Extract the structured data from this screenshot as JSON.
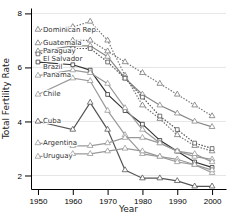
{
  "chart_data": {
    "type": "line",
    "xlabel": "Year",
    "ylabel": "Total Fertility Rate",
    "x": [
      1950,
      1960,
      1965,
      1970,
      1975,
      1980,
      1985,
      1990,
      1995,
      2000
    ],
    "series": [
      {
        "name": "Dominican Rep.",
        "color": "#777777",
        "marker": "triangle",
        "line_style": "dotted",
        "values": [
          7.4,
          7.5,
          7.7,
          7.0,
          5.7,
          4.6,
          4.1,
          3.5,
          3.1,
          2.9
        ]
      },
      {
        "name": "Guatemala",
        "color": "#777777",
        "marker": "triangle",
        "line_style": "dotted",
        "values": [
          6.9,
          7.0,
          7.0,
          6.6,
          6.2,
          5.8,
          5.4,
          5.0,
          4.6,
          4.2
        ]
      },
      {
        "name": "Paraguay",
        "color": "#888888",
        "marker": "triangle",
        "line_style": "solid",
        "values": [
          6.6,
          6.8,
          6.8,
          6.4,
          5.6,
          5.0,
          4.6,
          4.3,
          4.0,
          3.8
        ]
      },
      {
        "name": "El Salvador",
        "color": "#555555",
        "marker": "square",
        "line_style": "dotted",
        "values": [
          6.5,
          6.7,
          6.7,
          6.2,
          5.6,
          4.9,
          4.2,
          3.7,
          3.2,
          3.0
        ]
      },
      {
        "name": "Brazil",
        "color": "#333333",
        "marker": "square",
        "line_style": "solid",
        "values": [
          6.2,
          6.1,
          5.9,
          5.0,
          4.4,
          3.9,
          3.3,
          2.9,
          2.5,
          2.3
        ]
      },
      {
        "name": "Panama",
        "color": "#999999",
        "marker": "triangle",
        "line_style": "solid",
        "values": [
          5.7,
          5.9,
          5.8,
          5.4,
          4.5,
          3.7,
          3.2,
          2.9,
          2.7,
          2.6
        ]
      },
      {
        "name": "Chile",
        "color": "#999999",
        "marker": "triangle",
        "line_style": "solid",
        "values": [
          5.0,
          5.6,
          5.5,
          4.4,
          3.5,
          2.8,
          2.7,
          2.6,
          2.4,
          2.1
        ]
      },
      {
        "name": "Cuba",
        "color": "#555555",
        "marker": "triangle",
        "line_style": "solid",
        "values": [
          4.0,
          3.7,
          4.7,
          3.7,
          2.2,
          1.9,
          1.9,
          1.8,
          1.6,
          1.6
        ]
      },
      {
        "name": "Argentina",
        "color": "#999999",
        "marker": "triangle",
        "line_style": "solid",
        "values": [
          3.2,
          3.1,
          3.1,
          3.2,
          3.4,
          3.4,
          3.2,
          2.9,
          2.8,
          2.5
        ]
      },
      {
        "name": "Uruguay",
        "color": "#999999",
        "marker": "triangle",
        "line_style": "solid",
        "values": [
          2.7,
          2.8,
          2.8,
          2.9,
          3.0,
          2.9,
          2.7,
          2.5,
          2.4,
          2.2
        ]
      }
    ],
    "xlim": [
      1948,
      2004
    ],
    "ylim": [
      1.5,
      8.2
    ],
    "xticks": [
      1950,
      1960,
      1970,
      1980,
      1990,
      2000
    ],
    "yticks": [
      2,
      4,
      6,
      8
    ],
    "grid": true
  }
}
